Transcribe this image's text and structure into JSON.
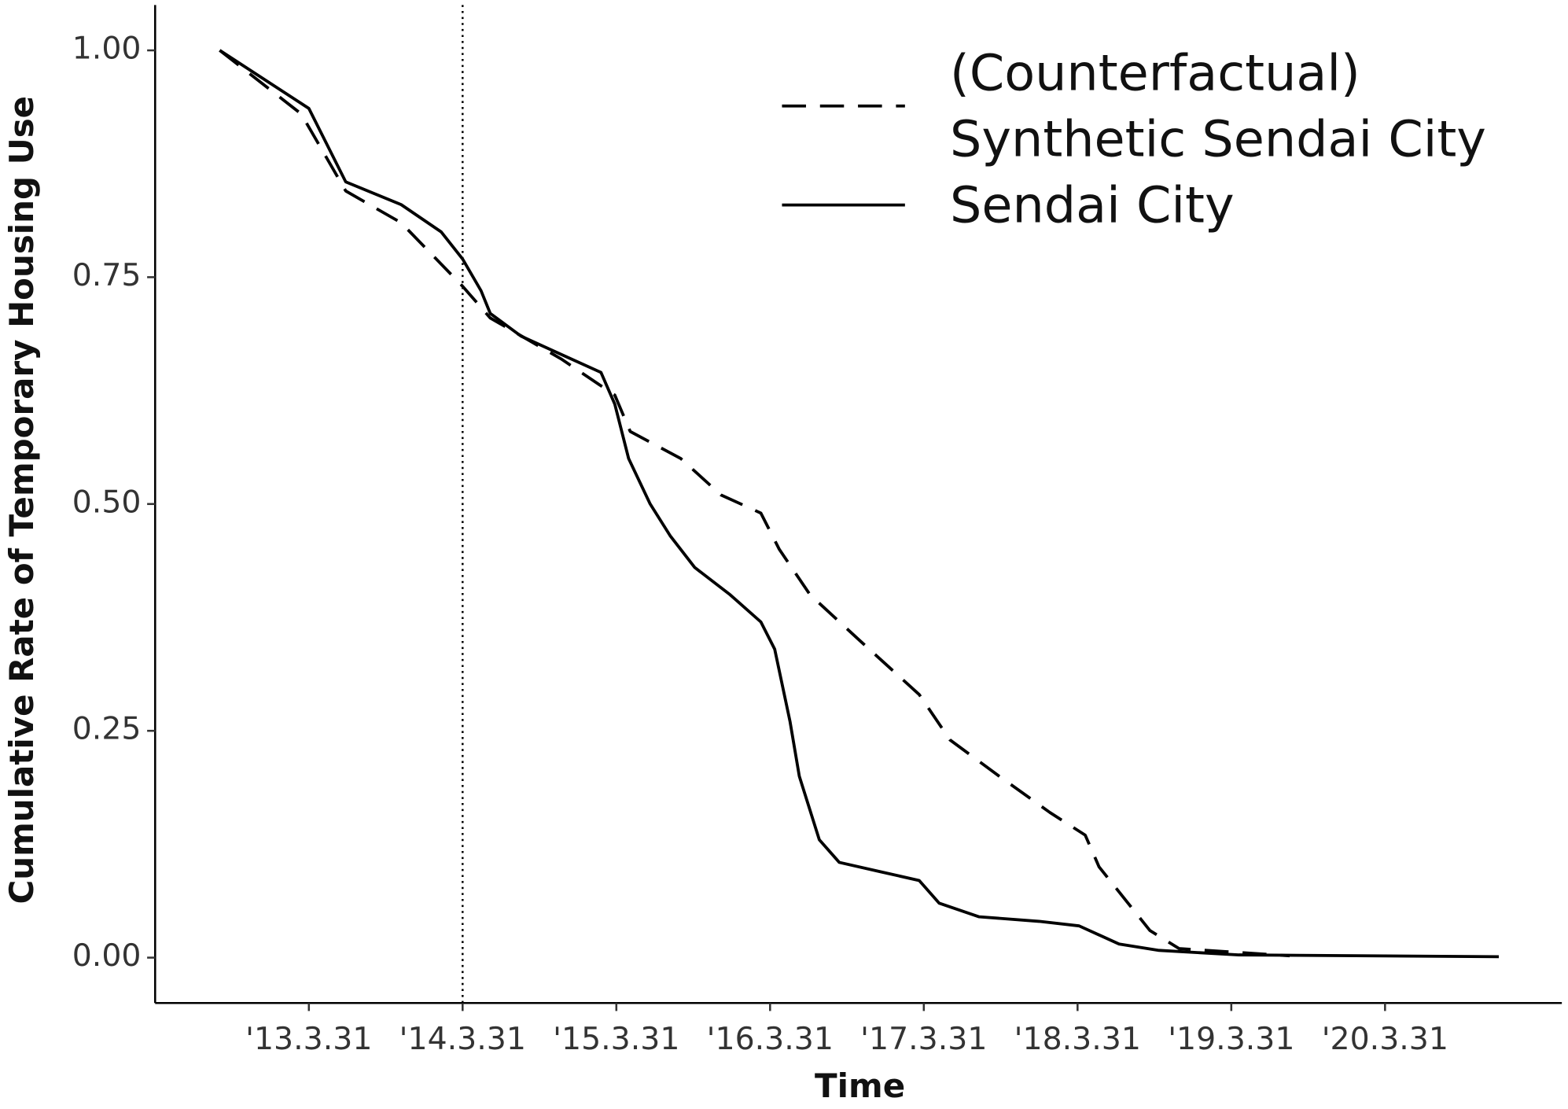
{
  "chart_data": {
    "type": "line",
    "x_label": "Time",
    "y_label": "Cumulative Rate of Temporary Housing Use",
    "xlim": [
      12.0,
      21.15
    ],
    "ylim": [
      -0.05,
      1.05
    ],
    "xticks": [
      {
        "value": 13,
        "label": "'13.3.31"
      },
      {
        "value": 14,
        "label": "'14.3.31"
      },
      {
        "value": 15,
        "label": "'15.3.31"
      },
      {
        "value": 16,
        "label": "'16.3.31"
      },
      {
        "value": 17,
        "label": "'17.3.31"
      },
      {
        "value": 18,
        "label": "'18.3.31"
      },
      {
        "value": 19,
        "label": "'19.3.31"
      },
      {
        "value": 20,
        "label": "'20.3.31"
      }
    ],
    "yticks": [
      {
        "value": 0,
        "label": "0.00"
      },
      {
        "value": 0.25,
        "label": "0.25"
      },
      {
        "value": 0.5,
        "label": "0.50"
      },
      {
        "value": 0.75,
        "label": "0.75"
      },
      {
        "value": 1,
        "label": "1.00"
      }
    ],
    "vline": 14,
    "grid": false,
    "legend": "top-right",
    "series": [
      {
        "name": "(Counterfactual)\nSynthetic Sendai City",
        "color": "#000000",
        "linestyle": "dashed",
        "x": [
          12.42,
          12.95,
          13.24,
          13.6,
          14.0,
          14.18,
          14.64,
          14.99,
          15.09,
          15.42,
          15.68,
          15.94,
          16.06,
          16.26,
          16.58,
          16.97,
          17.17,
          17.49,
          17.82,
          18.05,
          18.14,
          18.47,
          18.66,
          19.38
        ],
        "values": [
          1.0,
          0.93,
          0.845,
          0.81,
          0.74,
          0.705,
          0.66,
          0.62,
          0.58,
          0.55,
          0.51,
          0.49,
          0.45,
          0.4,
          0.35,
          0.29,
          0.24,
          0.2,
          0.16,
          0.135,
          0.1,
          0.03,
          0.01,
          0.002
        ]
      },
      {
        "name": "Sendai City",
        "color": "#000000",
        "linestyle": "solid",
        "x": [
          12.42,
          13.0,
          13.24,
          13.6,
          13.86,
          14.0,
          14.12,
          14.18,
          14.38,
          14.64,
          14.9,
          14.99,
          15.08,
          15.22,
          15.35,
          15.51,
          15.74,
          15.94,
          16.03,
          16.13,
          16.19,
          16.32,
          16.45,
          16.71,
          16.97,
          17.1,
          17.36,
          17.75,
          18.01,
          18.27,
          18.53,
          19.05,
          20.74
        ],
        "values": [
          1.0,
          0.936,
          0.855,
          0.83,
          0.8,
          0.77,
          0.735,
          0.71,
          0.685,
          0.665,
          0.645,
          0.61,
          0.55,
          0.5,
          0.465,
          0.43,
          0.4,
          0.37,
          0.34,
          0.26,
          0.2,
          0.13,
          0.105,
          0.095,
          0.085,
          0.06,
          0.045,
          0.04,
          0.035,
          0.015,
          0.008,
          0.003,
          0.001
        ]
      }
    ]
  }
}
